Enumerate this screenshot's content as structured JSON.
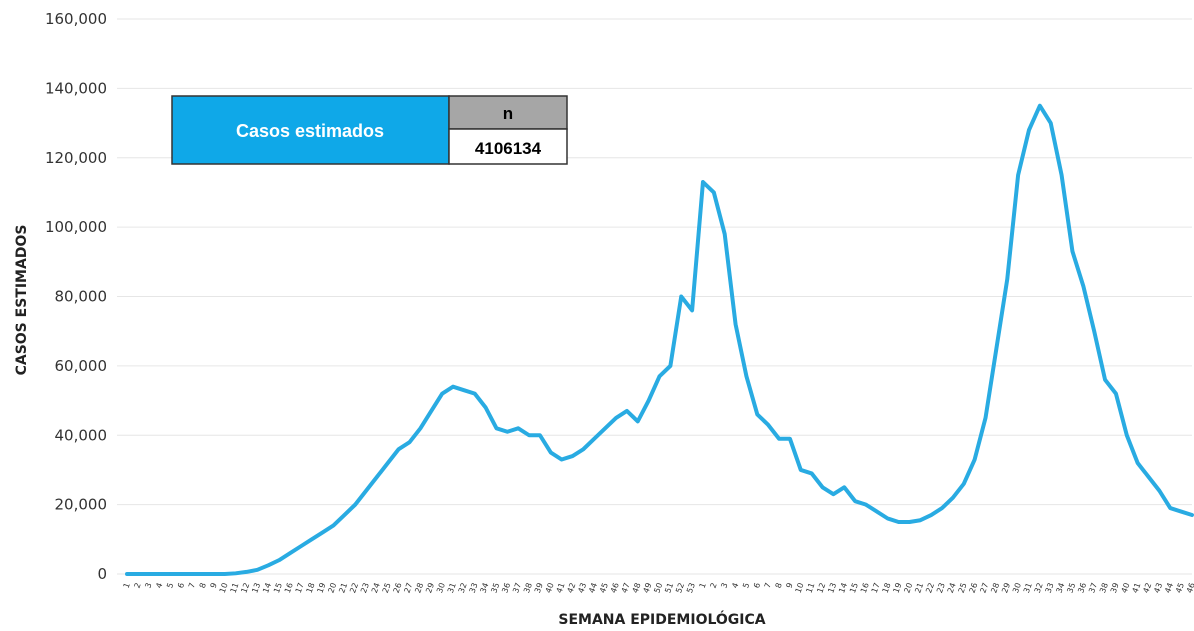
{
  "chart_data": {
    "type": "line",
    "title": "",
    "xlabel": "SEMANA EPIDEMIOLÓGICA",
    "ylabel": "CASOS ESTIMADOS",
    "ylim": [
      0,
      160000
    ],
    "yticks": [
      "0",
      "20,000",
      "40,000",
      "60,000",
      "80,000",
      "100,000",
      "120,000",
      "140,000",
      "160,000"
    ],
    "grid": true,
    "colors": {
      "line": "#29abe2",
      "grid": "#e6e6e6",
      "table_header": "#0fa8e8",
      "table_n_header": "#a6a6a6"
    },
    "x": [
      1,
      2,
      3,
      4,
      5,
      6,
      7,
      8,
      9,
      10,
      11,
      12,
      13,
      14,
      15,
      16,
      17,
      18,
      19,
      20,
      21,
      22,
      23,
      24,
      25,
      26,
      27,
      28,
      29,
      30,
      31,
      32,
      33,
      34,
      35,
      36,
      37,
      38,
      39,
      40,
      41,
      42,
      43,
      44,
      45,
      46,
      47,
      48,
      49,
      50,
      51,
      52,
      53,
      1,
      2,
      3,
      4,
      5,
      6,
      7,
      8,
      9,
      10,
      11,
      12,
      13,
      14,
      15,
      16,
      17,
      18,
      19,
      20,
      21,
      22,
      23,
      24,
      25,
      26,
      27,
      28,
      29,
      30,
      31,
      32,
      33,
      34,
      35,
      36,
      37,
      38,
      39,
      40,
      41,
      42,
      43,
      44,
      45,
      46
    ],
    "series": [
      {
        "values": [
          0,
          0,
          0,
          0,
          0,
          0,
          0,
          0,
          0,
          0,
          200,
          600,
          1200,
          2500,
          4000,
          6000,
          8000,
          10000,
          12000,
          14000,
          17000,
          20000,
          24000,
          28000,
          32000,
          36000,
          38000,
          42000,
          47000,
          52000,
          54000,
          53000,
          52000,
          48000,
          42000,
          41000,
          42000,
          40000,
          40000,
          35000,
          33000,
          34000,
          36000,
          39000,
          42000,
          45000,
          47000,
          44000,
          50000,
          57000,
          60000,
          80000,
          76000,
          113000,
          110000,
          98000,
          72000,
          57000,
          46000,
          43000,
          39000,
          39000,
          30000,
          29000,
          25000,
          23000,
          25000,
          21000,
          20000,
          18000,
          16000,
          15000,
          15000,
          15500,
          17000,
          19000,
          22000,
          26000,
          33000,
          45000,
          65000,
          85000,
          115000,
          128000,
          135000,
          130000,
          115000,
          93000,
          83000,
          70000,
          56000,
          52000,
          40000,
          32000,
          28000,
          24000,
          19000,
          18000,
          17000
        ]
      }
    ]
  },
  "summary_table": {
    "label": "Casos estimados",
    "n_header": "n",
    "n_value": "4106134"
  }
}
